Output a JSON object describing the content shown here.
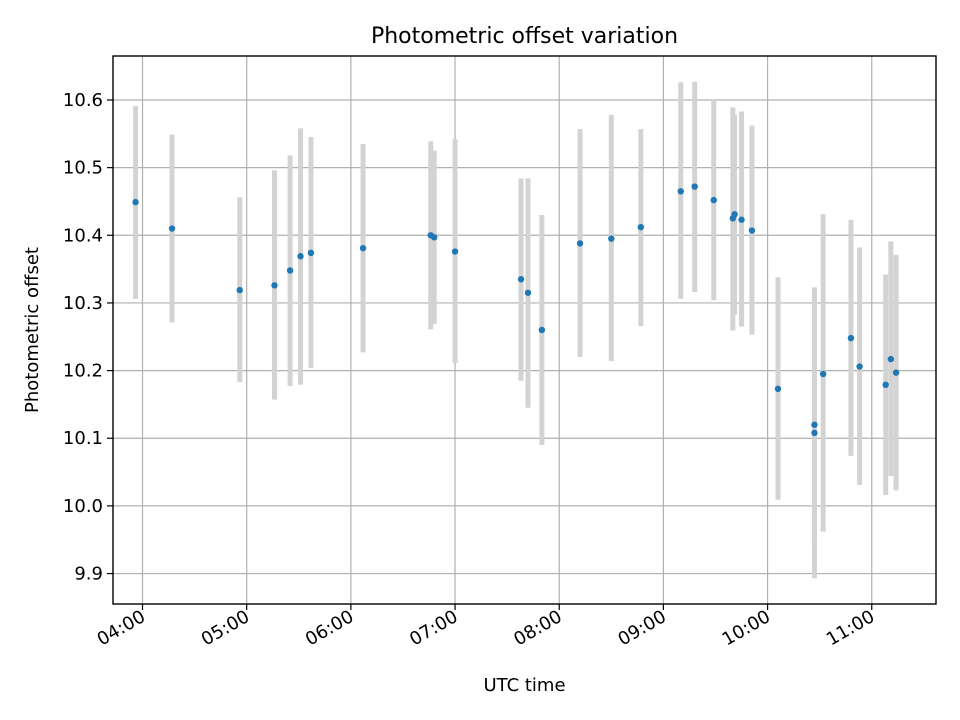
{
  "chart_data": {
    "type": "scatter",
    "title": "Photometric offset variation",
    "xlabel": "UTC time",
    "ylabel": "Photometric offset",
    "xlim": [
      "03:43",
      "11:37"
    ],
    "ylim": [
      9.855,
      10.665
    ],
    "grid": true,
    "x_ticks": [
      "04:00",
      "05:00",
      "06:00",
      "07:00",
      "08:00",
      "09:00",
      "10:00",
      "11:00"
    ],
    "y_ticks": [
      9.9,
      10.0,
      10.1,
      10.2,
      10.3,
      10.4,
      10.5,
      10.6
    ],
    "y_tick_labels": [
      "9.9",
      "10.0",
      "10.1",
      "10.2",
      "10.3",
      "10.4",
      "10.5",
      "10.6"
    ],
    "colors": {
      "marker": "#1f77b4",
      "errorbar": "#d3d3d3"
    },
    "points": [
      {
        "x": "03:56",
        "y": 10.449,
        "low": 10.306,
        "high": 10.591
      },
      {
        "x": "04:17",
        "y": 10.41,
        "low": 10.271,
        "high": 10.549
      },
      {
        "x": "04:56",
        "y": 10.319,
        "low": 10.183,
        "high": 10.456
      },
      {
        "x": "05:16",
        "y": 10.326,
        "low": 10.157,
        "high": 10.496
      },
      {
        "x": "05:25",
        "y": 10.348,
        "low": 10.177,
        "high": 10.518
      },
      {
        "x": "05:31",
        "y": 10.369,
        "low": 10.179,
        "high": 10.558
      },
      {
        "x": "05:37",
        "y": 10.374,
        "low": 10.204,
        "high": 10.545
      },
      {
        "x": "06:07",
        "y": 10.381,
        "low": 10.227,
        "high": 10.535
      },
      {
        "x": "06:46",
        "y": 10.4,
        "low": 10.261,
        "high": 10.539
      },
      {
        "x": "06:48",
        "y": 10.397,
        "low": 10.269,
        "high": 10.525
      },
      {
        "x": "07:00",
        "y": 10.376,
        "low": 10.211,
        "high": 10.542
      },
      {
        "x": "07:38",
        "y": 10.335,
        "low": 10.185,
        "high": 10.484
      },
      {
        "x": "07:42",
        "y": 10.315,
        "low": 10.145,
        "high": 10.484
      },
      {
        "x": "07:50",
        "y": 10.26,
        "low": 10.09,
        "high": 10.43
      },
      {
        "x": "08:12",
        "y": 10.388,
        "low": 10.22,
        "high": 10.557
      },
      {
        "x": "08:30",
        "y": 10.395,
        "low": 10.214,
        "high": 10.578
      },
      {
        "x": "08:47",
        "y": 10.412,
        "low": 10.266,
        "high": 10.557
      },
      {
        "x": "09:10",
        "y": 10.465,
        "low": 10.306,
        "high": 10.626
      },
      {
        "x": "09:18",
        "y": 10.472,
        "low": 10.316,
        "high": 10.627
      },
      {
        "x": "09:29",
        "y": 10.452,
        "low": 10.304,
        "high": 10.6
      },
      {
        "x": "09:40",
        "y": 10.425,
        "low": 10.259,
        "high": 10.589
      },
      {
        "x": "09:41",
        "y": 10.431,
        "low": 10.283,
        "high": 10.578
      },
      {
        "x": "09:45",
        "y": 10.423,
        "low": 10.265,
        "high": 10.583
      },
      {
        "x": "09:51",
        "y": 10.407,
        "low": 10.253,
        "high": 10.562
      },
      {
        "x": "10:06",
        "y": 10.173,
        "low": 10.009,
        "high": 10.338
      },
      {
        "x": "10:27",
        "y": 10.108,
        "low": 9.893,
        "high": 10.323
      },
      {
        "x": "10:27",
        "y": 10.12,
        "low": 9.935,
        "high": 10.306
      },
      {
        "x": "10:32",
        "y": 10.195,
        "low": 9.962,
        "high": 10.431
      },
      {
        "x": "10:48",
        "y": 10.248,
        "low": 10.074,
        "high": 10.423
      },
      {
        "x": "10:53",
        "y": 10.206,
        "low": 10.031,
        "high": 10.382
      },
      {
        "x": "11:08",
        "y": 10.179,
        "low": 10.016,
        "high": 10.342
      },
      {
        "x": "11:11",
        "y": 10.217,
        "low": 10.044,
        "high": 10.391
      },
      {
        "x": "11:14",
        "y": 10.197,
        "low": 10.023,
        "high": 10.371
      }
    ]
  }
}
